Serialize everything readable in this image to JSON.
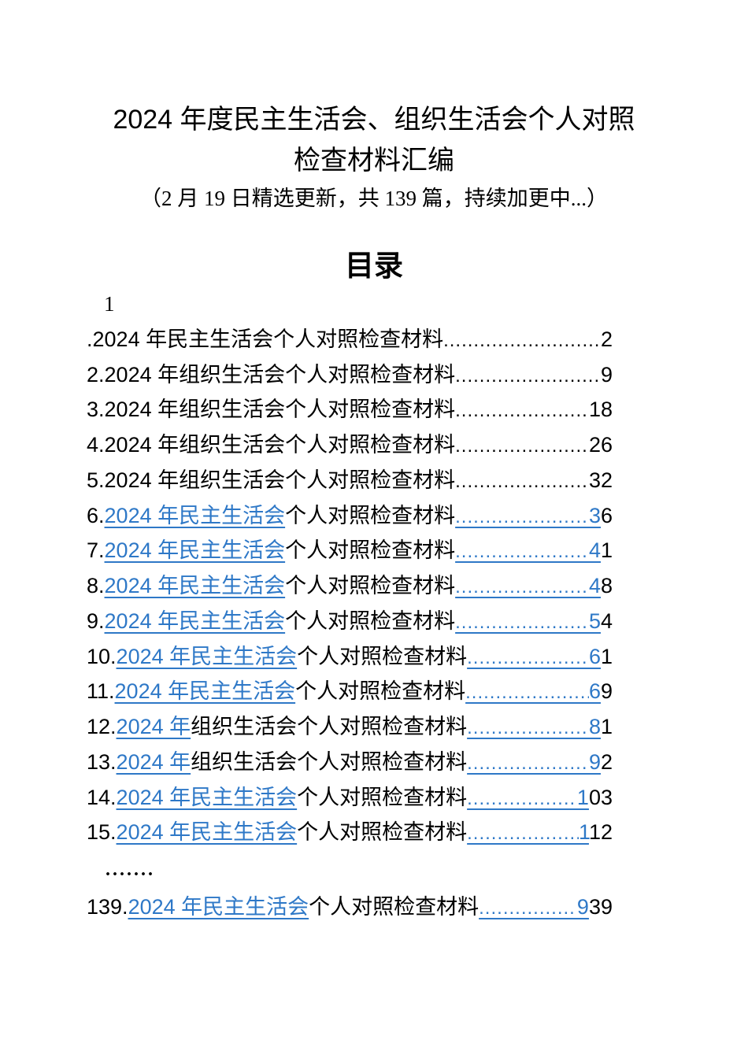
{
  "page": {
    "title_line1": "2024 年度民主生活会、组织生活会个人对照",
    "title_line2": "检查材料汇编",
    "subtitle": "（2 月 19 日精选更新，共 139 篇，持续加更中...）",
    "toc_heading": "目录",
    "orphan_number": "1",
    "colors": {
      "link_blue": "#2E78C7",
      "text_black": "#000000",
      "page_background": "#FFFFFF"
    }
  },
  "toc_entries": [
    {
      "kind": "entry",
      "prefix": ".",
      "link": "",
      "text": "2024 年民主生活会个人对照检查材料",
      "page_link": "",
      "page_rest": "2"
    },
    {
      "kind": "entry",
      "prefix": "2.",
      "link": "",
      "text": "2024 年组织生活会个人对照检查材料",
      "page_link": "",
      "page_rest": "9"
    },
    {
      "kind": "entry",
      "prefix": "3.",
      "link": "",
      "text": "2024 年组织生活会个人对照检查材料",
      "page_link": "",
      "page_rest": "18"
    },
    {
      "kind": "entry",
      "prefix": "4.",
      "link": "",
      "text": "2024 年组织生活会个人对照检查材料",
      "page_link": "",
      "page_rest": "26"
    },
    {
      "kind": "entry",
      "prefix": "5.",
      "link": "",
      "text": "2024 年组织生活会个人对照检查材料",
      "page_link": "",
      "page_rest": "32"
    },
    {
      "kind": "entry",
      "prefix": "6.",
      "link": "2024 年民主生活会",
      "text": "个人对照检查材料",
      "page_link": "3",
      "page_rest": "6"
    },
    {
      "kind": "entry",
      "prefix": "7.",
      "link": "2024 年民主生活会",
      "text": "个人对照检查材料",
      "page_link": "4",
      "page_rest": "1"
    },
    {
      "kind": "entry",
      "prefix": "8.",
      "link": "2024 年民主生活会",
      "text": "个人对照检查材料",
      "page_link": "4",
      "page_rest": "8"
    },
    {
      "kind": "entry",
      "prefix": "9.",
      "link": "2024 年民主生活会",
      "text": "个人对照检查材料",
      "page_link": "5",
      "page_rest": "4"
    },
    {
      "kind": "entry",
      "prefix": "10.",
      "link": "2024 年民主生活会",
      "text": "个人对照检查材料",
      "page_link": "6",
      "page_rest": "1"
    },
    {
      "kind": "entry",
      "prefix": "11.",
      "link": "2024 年民主生活会",
      "text": "个人对照检查材料",
      "page_link": "6",
      "page_rest": "9"
    },
    {
      "kind": "entry",
      "prefix": "12.",
      "link": "2024 年",
      "text": "组织生活会个人对照检查材料",
      "page_link": "8",
      "page_rest": "1"
    },
    {
      "kind": "entry",
      "prefix": "13.",
      "link": "2024 年",
      "text": "组织生活会个人对照检查材料",
      "page_link": "9",
      "page_rest": "2"
    },
    {
      "kind": "entry",
      "prefix": "14.",
      "link": "2024 年民主生活会",
      "text": "个人对照检查材料",
      "page_link": "1",
      "page_rest": "03"
    },
    {
      "kind": "entry",
      "prefix": "15.",
      "link": "2024 年民主生活会",
      "text": "个人对照检查材料",
      "page_link": "1",
      "page_rest": "12"
    },
    {
      "kind": "ellipsis",
      "text": "......."
    },
    {
      "kind": "entry",
      "prefix": "139.",
      "link": "2024 年民主生活会",
      "text": "个人对照检查材料",
      "page_link": "9",
      "page_rest": "39"
    }
  ]
}
